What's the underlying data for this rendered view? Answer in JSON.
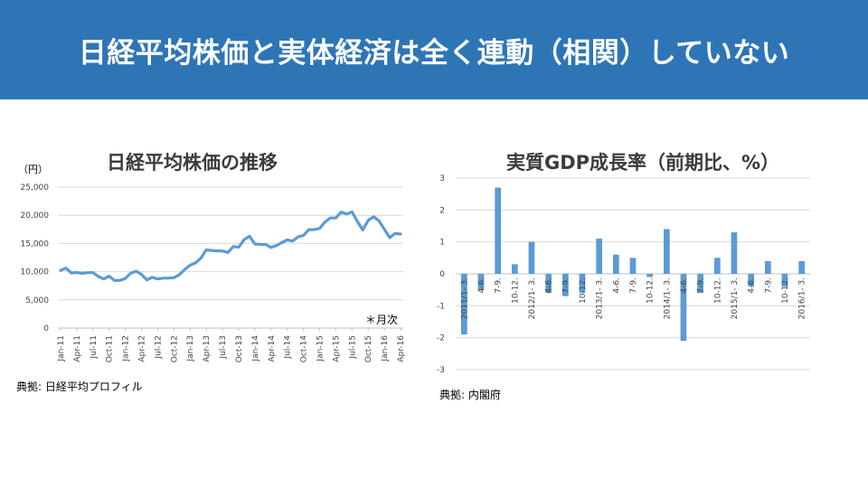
{
  "slide": {
    "title": "日経平均株価と実体経済は全く連動（相関）していない",
    "colors": {
      "banner": "#2e75b6",
      "line": "#5b9bd5",
      "bar": "#5b9bd5"
    }
  },
  "left_panel": {
    "title": "日経平均株価の推移",
    "unit_label": "（円）",
    "note": "＊月次",
    "source": "典拠: 日経平均プロフィル"
  },
  "right_panel": {
    "title": "実質GDP成長率（前期比、%）",
    "source": "典拠: 内閣府"
  },
  "chart_data": [
    {
      "type": "line",
      "title": "日経平均株価の推移",
      "ylabel": "（円）",
      "ylim": [
        0,
        25000
      ],
      "yticks": [
        0,
        5000,
        10000,
        15000,
        20000,
        25000
      ],
      "ytick_labels": [
        "0",
        "5,000",
        "10,000",
        "15,000",
        "20,000",
        "25,000"
      ],
      "xtick_labels": [
        "Jan-11",
        "Apr-11",
        "Jul-11",
        "Oct-11",
        "Jan-12",
        "Apr-12",
        "Jul-12",
        "Oct-12",
        "Jan-13",
        "Apr-13",
        "Jul-13",
        "Oct-13",
        "Jan-14",
        "Apr-14",
        "Jul-14",
        "Oct-14",
        "Jan-15",
        "Apr-15",
        "Jul-15",
        "Oct-15",
        "Jan-16",
        "Apr-16"
      ],
      "grid": true,
      "annotation": "＊月次",
      "series": [
        {
          "values": [
            10240,
            10620,
            9760,
            9850,
            9690,
            9820,
            9830,
            9140,
            8700,
            9200,
            8430,
            8460,
            8800,
            9720,
            10080,
            9520,
            8540,
            9010,
            8700,
            8840,
            8870,
            8930,
            9450,
            10400,
            11140,
            11560,
            12400,
            13860,
            13770,
            13670,
            13670,
            13390,
            14460,
            14330,
            15660,
            16290,
            14910,
            14840,
            14830,
            14300,
            14630,
            15160,
            15620,
            15420,
            16170,
            16410,
            17450,
            17450,
            17670,
            18800,
            19520,
            19520,
            20560,
            20240,
            20590,
            18890,
            17390,
            19080,
            19750,
            19030,
            17520,
            16030,
            16760,
            16670
          ],
          "x_start": "Jan-11",
          "x_end": "Apr-16"
        }
      ]
    },
    {
      "type": "bar",
      "title": "実質GDP成長率（前期比、%）",
      "ylim": [
        -3,
        3
      ],
      "yticks": [
        -3,
        -2,
        -1,
        0,
        1,
        2,
        3
      ],
      "ytick_labels": [
        "-3",
        "-2",
        "-1",
        "0",
        "1",
        "2",
        "3"
      ],
      "categories": [
        "2011/1- 3.",
        "4-6.",
        "7-9.",
        "10-12.",
        "2012/1- 3.",
        "4-6.",
        "7-9.",
        "10-12.",
        "2013/1- 3.",
        "4-6.",
        "7-9.",
        "10-12.",
        "2014/1- 3.",
        "4-6.",
        "7-9.",
        "10-12.",
        "2015/1- 3.",
        "4-6.",
        "7-9.",
        "10-12.",
        "2016/1- 3."
      ],
      "values": [
        -1.9,
        -0.5,
        2.7,
        0.3,
        1.0,
        -0.6,
        -0.7,
        -0.6,
        1.1,
        0.6,
        0.5,
        -0.1,
        1.4,
        -2.1,
        -0.6,
        0.5,
        1.3,
        -0.4,
        0.4,
        -0.4,
        0.4
      ]
    }
  ]
}
